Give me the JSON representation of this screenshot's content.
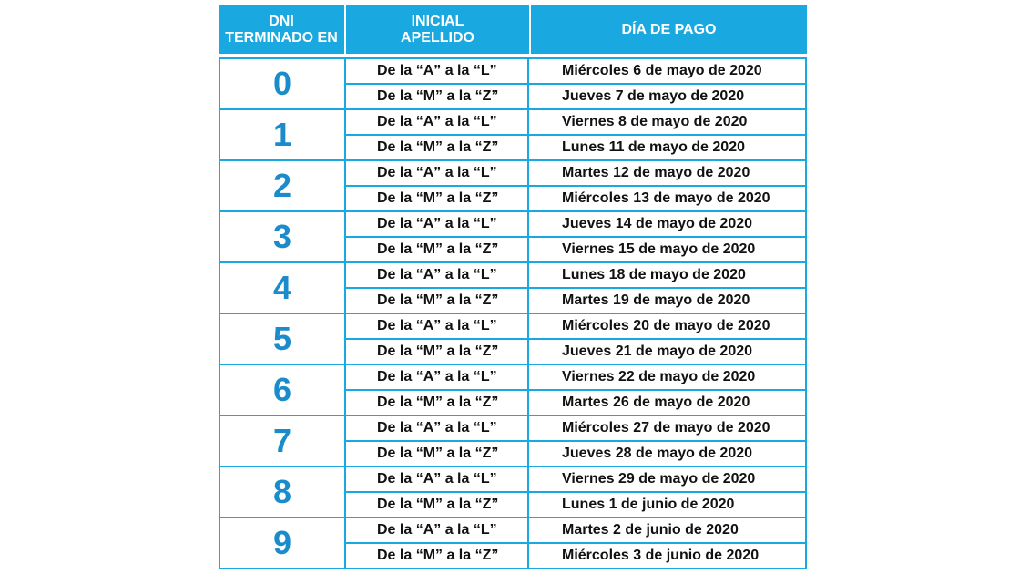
{
  "header": {
    "col1": "DNI\nTERMINADO EN",
    "col2": "INICIAL\nAPELLIDO",
    "col3": "DÍA DE PAGO"
  },
  "groups": [
    {
      "dni": "0",
      "rows": [
        {
          "inicial": "De la “A” a la “L”",
          "dia": "Miércoles 6 de mayo de 2020"
        },
        {
          "inicial": "De la “M” a la “Z”",
          "dia": "Jueves 7 de mayo de 2020"
        }
      ]
    },
    {
      "dni": "1",
      "rows": [
        {
          "inicial": "De la “A” a la “L”",
          "dia": "Viernes 8 de mayo de 2020"
        },
        {
          "inicial": "De la “M” a la “Z”",
          "dia": "Lunes 11 de mayo de 2020"
        }
      ]
    },
    {
      "dni": "2",
      "rows": [
        {
          "inicial": "De la “A” a la “L”",
          "dia": "Martes 12 de mayo de 2020"
        },
        {
          "inicial": "De la “M” a la “Z”",
          "dia": "Miércoles 13 de mayo de 2020"
        }
      ]
    },
    {
      "dni": "3",
      "rows": [
        {
          "inicial": "De la “A” a la “L”",
          "dia": "Jueves 14 de mayo de 2020"
        },
        {
          "inicial": "De la “M” a la “Z”",
          "dia": "Viernes 15 de mayo de 2020"
        }
      ]
    },
    {
      "dni": "4",
      "rows": [
        {
          "inicial": "De la “A” a la “L”",
          "dia": "Lunes 18 de mayo de 2020"
        },
        {
          "inicial": "De la “M” a la “Z”",
          "dia": "Martes 19 de mayo de 2020"
        }
      ]
    },
    {
      "dni": "5",
      "rows": [
        {
          "inicial": "De la “A” a la “L”",
          "dia": "Miércoles 20 de mayo de 2020"
        },
        {
          "inicial": "De la “M” a la “Z”",
          "dia": "Jueves 21 de mayo de 2020"
        }
      ]
    },
    {
      "dni": "6",
      "rows": [
        {
          "inicial": "De la “A” a la “L”",
          "dia": "Viernes 22 de mayo de 2020"
        },
        {
          "inicial": "De la “M” a la “Z”",
          "dia": "Martes 26 de mayo de 2020"
        }
      ]
    },
    {
      "dni": "7",
      "rows": [
        {
          "inicial": "De la “A” a la “L”",
          "dia": "Miércoles 27 de mayo de 2020"
        },
        {
          "inicial": "De la “M” a la “Z”",
          "dia": "Jueves 28 de mayo de 2020"
        }
      ]
    },
    {
      "dni": "8",
      "rows": [
        {
          "inicial": "De la “A” a la “L”",
          "dia": "Viernes 29 de mayo de 2020"
        },
        {
          "inicial": "De la “M” a la “Z”",
          "dia": "Lunes 1 de junio de 2020"
        }
      ]
    },
    {
      "dni": "9",
      "rows": [
        {
          "inicial": "De la “A” a la “L”",
          "dia": "Martes 2 de junio de 2020"
        },
        {
          "inicial": "De la “M” a la “Z”",
          "dia": "Miércoles 3 de junio de 2020"
        }
      ]
    }
  ],
  "colors": {
    "accent": "#19a9e0",
    "dni_text": "#1a8ccc",
    "text": "#111111"
  }
}
